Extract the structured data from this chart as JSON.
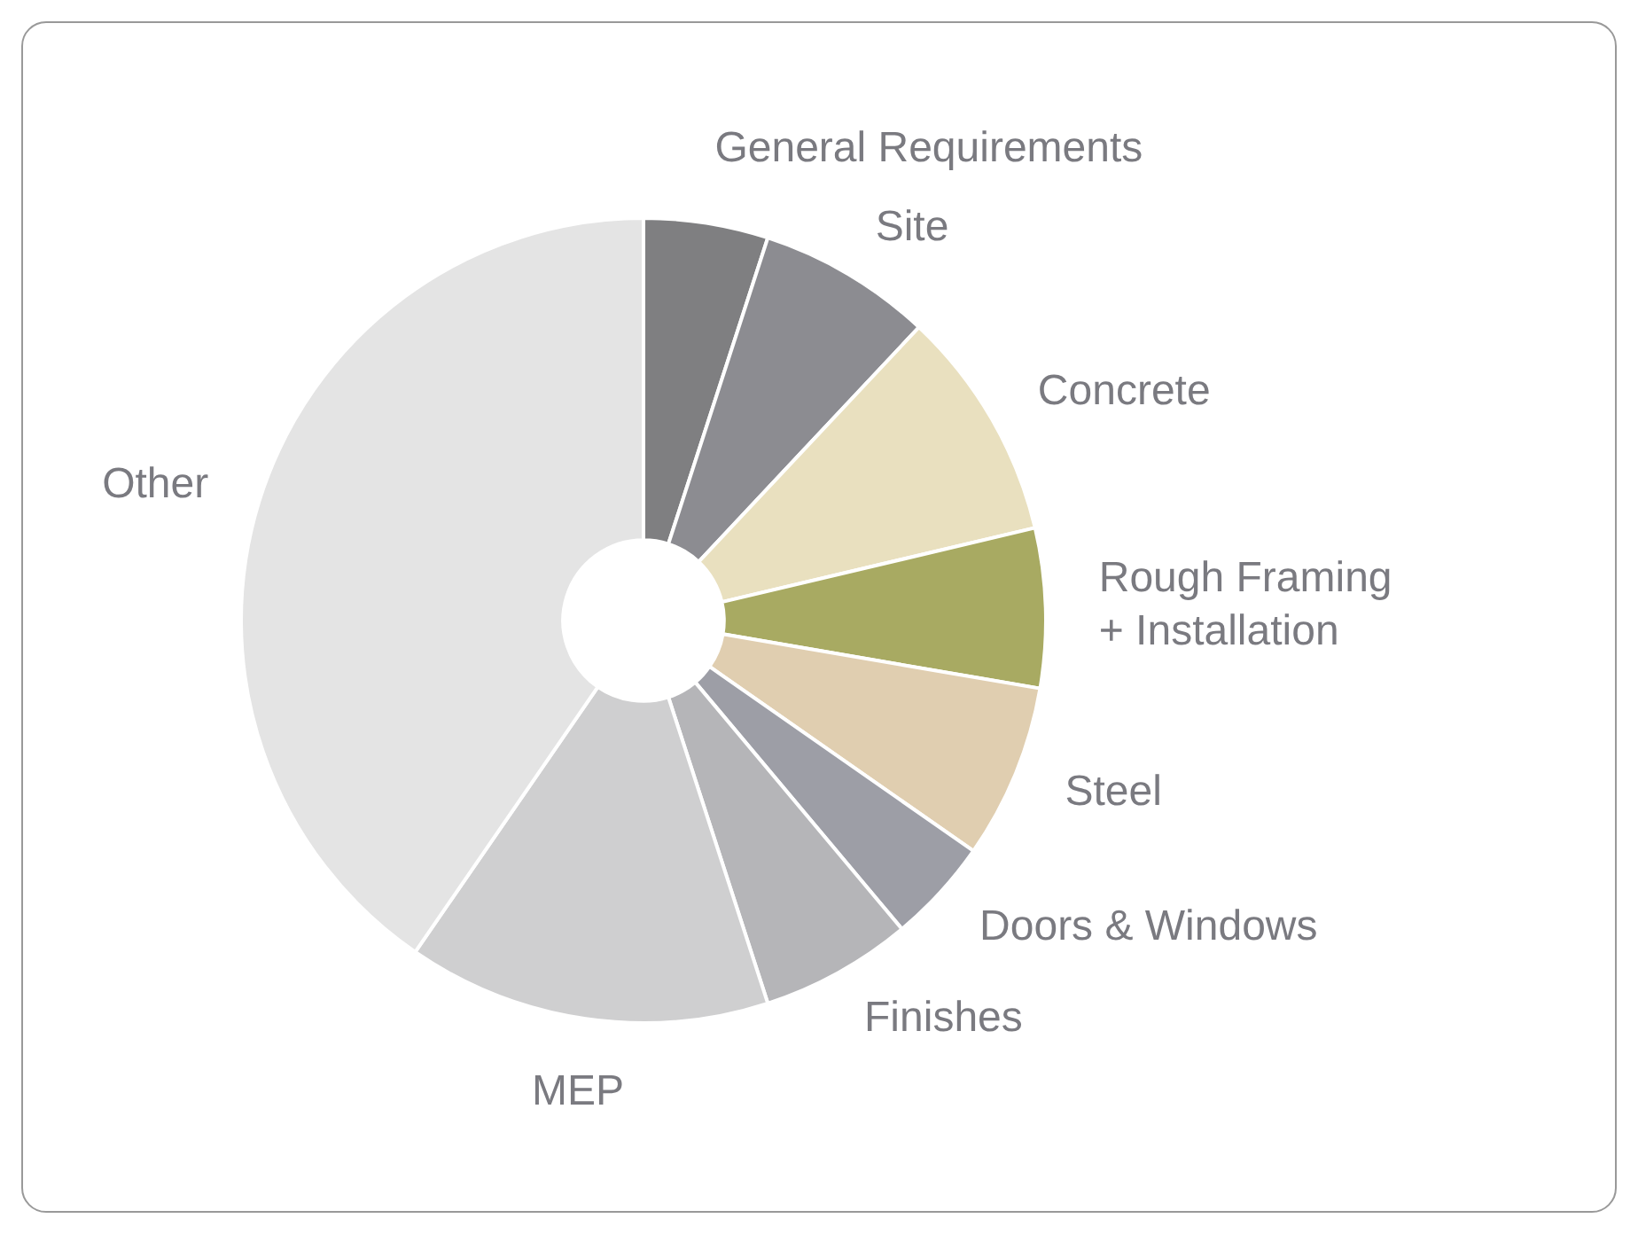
{
  "chart_data": {
    "type": "donut",
    "categories": [
      "General Requirements",
      "Site",
      "Concrete",
      "Rough Framing\n+ Installation",
      "Steel",
      "Doors & Windows",
      "Finishes",
      "MEP",
      "Other"
    ],
    "values": [
      5,
      7,
      9.3,
      6.4,
      7,
      4.2,
      6.1,
      14.6,
      40.4
    ],
    "colors": [
      "#7f7f81",
      "#8c8c91",
      "#e9e0bf",
      "#a8aa62",
      "#e0ceb0",
      "#9d9ea6",
      "#b5b5b8",
      "#cfcfd0",
      "#e4e4e4"
    ],
    "legend": false
  }
}
